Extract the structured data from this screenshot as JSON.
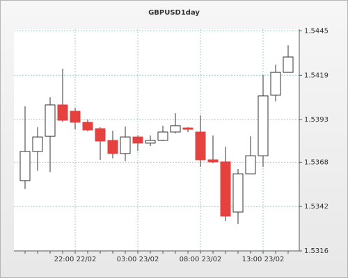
{
  "chart_data": {
    "type": "candlestick",
    "title": "GBPUSD1day",
    "categories": [
      null,
      null,
      null,
      null,
      "22:00 22/02",
      null,
      null,
      null,
      null,
      "03:00 23/02",
      null,
      null,
      null,
      null,
      "08:00 23/02",
      null,
      null,
      null,
      null,
      "13:00 23/02",
      null,
      null
    ],
    "open": [
      1.53572,
      1.53743,
      1.53832,
      1.54016,
      1.53979,
      1.53914,
      1.53877,
      1.53808,
      1.53731,
      1.53828,
      1.53792,
      1.53808,
      1.53857,
      1.53881,
      1.53857,
      1.53694,
      1.53682,
      1.53388,
      1.53612,
      1.53718,
      1.54073,
      1.54207
    ],
    "high": [
      1.54008,
      1.53885,
      1.54061,
      1.54228,
      1.53999,
      1.5393,
      1.53885,
      1.53865,
      1.53889,
      1.53837,
      1.53837,
      1.53894,
      1.53967,
      1.53885,
      1.53955,
      1.53837,
      1.53771,
      1.53641,
      1.53832,
      1.54191,
      1.54252,
      1.54366
    ],
    "low": [
      1.53523,
      1.53629,
      1.53621,
      1.53918,
      1.53873,
      1.53861,
      1.53694,
      1.53702,
      1.53686,
      1.53747,
      1.53775,
      1.53804,
      1.53849,
      1.53857,
      1.53653,
      1.53674,
      1.53335,
      1.53319,
      1.53612,
      1.53653,
      1.54036,
      1.54207
    ],
    "close": [
      1.53743,
      1.53828,
      1.54016,
      1.53926,
      1.53914,
      1.53869,
      1.53804,
      1.53731,
      1.53828,
      1.53792,
      1.53808,
      1.53857,
      1.53894,
      1.53873,
      1.53694,
      1.53682,
      1.53364,
      1.53612,
      1.53718,
      1.54069,
      1.54207,
      1.54297
    ],
    "up_color": "#ffffff",
    "down_color": "#e5413f",
    "ylim": [
      1.5316,
      1.5446
    ],
    "yticks": [
      1.5316,
      1.5342,
      1.5368,
      1.5393,
      1.5419,
      1.5445
    ],
    "grid": true
  }
}
